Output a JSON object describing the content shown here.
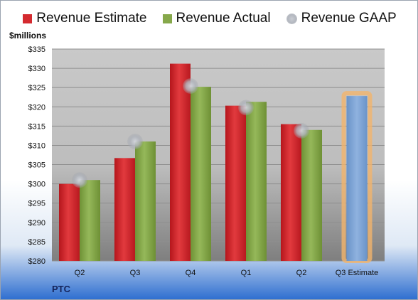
{
  "legend": {
    "estimate": "Revenue Estimate",
    "actual": "Revenue Actual",
    "gaap": "Revenue GAAP"
  },
  "ylabel": "$millions",
  "footer": "PTC",
  "colors": {
    "estimate": "#d42a2f",
    "actual": "#86a84a",
    "gaap": "#b8bcc4",
    "highlight_bar": "#7fa4d4",
    "highlight_glow": "#f3b46b"
  },
  "chart_data": {
    "type": "bar",
    "categories": [
      "Q2",
      "Q3",
      "Q4",
      "Q1",
      "Q2",
      "Q3 Estimate"
    ],
    "series": [
      {
        "name": "Revenue Estimate",
        "values": [
          300,
          306.7,
          331.2,
          320.3,
          315.5,
          null
        ]
      },
      {
        "name": "Revenue Actual",
        "values": [
          301,
          311,
          325.2,
          321.3,
          314,
          322.8
        ]
      },
      {
        "name": "Revenue GAAP",
        "values": [
          301,
          311,
          325.4,
          319.8,
          313.8,
          null
        ]
      }
    ],
    "ylim": [
      280,
      335
    ],
    "yticks": [
      "$280",
      "$285",
      "$290",
      "$295",
      "$300",
      "$305",
      "$310",
      "$315",
      "$320",
      "$325",
      "$330",
      "$335"
    ],
    "ylabel": "$millions",
    "grid": true,
    "legend_position": "top"
  }
}
